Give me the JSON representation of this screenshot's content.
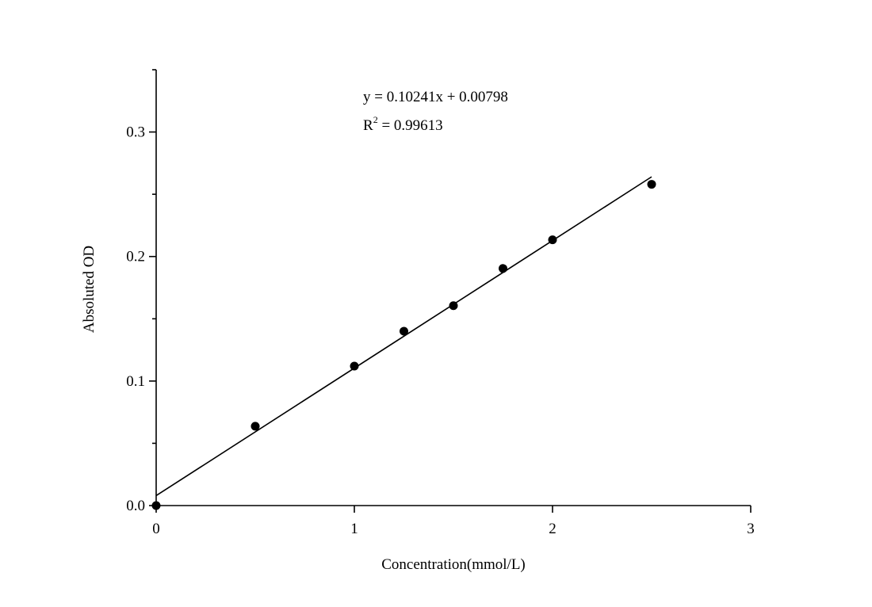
{
  "chart_data": {
    "type": "scatter",
    "x_label": "Concentration(mmol/L)",
    "y_label": "Absoluted OD",
    "equation": "y = 0.10241x + 0.00798",
    "r2": [
      "R",
      "2",
      " = 0.99613"
    ],
    "x": [
      0,
      0.5,
      1,
      1.25,
      1.5,
      1.75,
      2,
      2.5
    ],
    "values": [
      0,
      0.0637,
      0.112,
      0.14,
      0.1605,
      0.1904,
      0.2134,
      0.258
    ],
    "color": "#000000",
    "fit_line": {
      "x": [
        0,
        2.5
      ],
      "values": [
        0.00798,
        0.26401
      ]
    },
    "xlim": [
      0,
      3
    ],
    "ylim": [
      0,
      0.35
    ],
    "xticks": [
      0,
      1,
      2,
      3
    ],
    "yticks": [
      {
        "value": 0,
        "label": "0.0"
      },
      0.1,
      0.2,
      0.3
    ],
    "yminorticks": [
      0.05,
      0.15,
      0.25,
      0.35
    ]
  }
}
